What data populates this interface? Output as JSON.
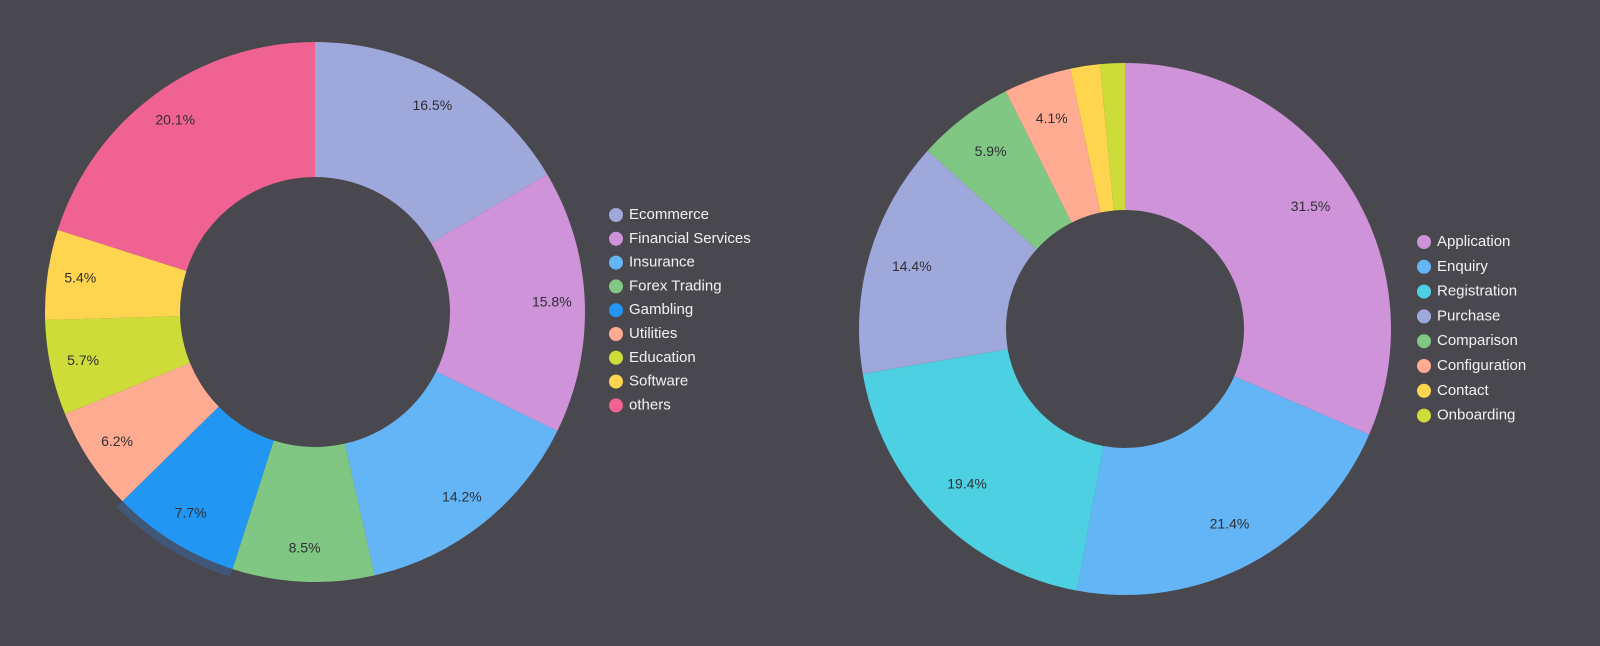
{
  "chart_data": [
    {
      "type": "pie",
      "donut": true,
      "title": "",
      "legend_position": "right",
      "slices": [
        {
          "name": "Ecommerce",
          "value": 16.5,
          "label": "16.5%",
          "color": "#9fa8da"
        },
        {
          "name": "Financial Services",
          "value": 15.8,
          "label": "15.8%",
          "color": "#ce93d8"
        },
        {
          "name": "Insurance",
          "value": 14.2,
          "label": "14.2%",
          "color": "#64b5f6"
        },
        {
          "name": "Forex Trading",
          "value": 8.5,
          "label": "8.5%",
          "color": "#81c784"
        },
        {
          "name": "Gambling",
          "value": 7.7,
          "label": "7.7%",
          "color": "#2196f3"
        },
        {
          "name": "Utilities",
          "value": 6.2,
          "label": "6.2%",
          "color": "#ffab91"
        },
        {
          "name": "Education",
          "value": 5.7,
          "label": "5.7%",
          "color": "#cddc39"
        },
        {
          "name": "Software",
          "value": 5.4,
          "label": "5.4%",
          "color": "#ffd54f"
        },
        {
          "name": "others",
          "value": 20.1,
          "label": "20.1%",
          "color": "#f06292"
        }
      ],
      "highlighted_slice": "Gambling"
    },
    {
      "type": "pie",
      "donut": true,
      "title": "",
      "legend_position": "right",
      "slices": [
        {
          "name": "Application",
          "value": 31.5,
          "label": "31.5%",
          "color": "#ce93d8"
        },
        {
          "name": "Enquiry",
          "value": 21.4,
          "label": "21.4%",
          "color": "#64b5f6"
        },
        {
          "name": "Registration",
          "value": 19.4,
          "label": "19.4%",
          "color": "#4dd0e1"
        },
        {
          "name": "Purchase",
          "value": 14.4,
          "label": "14.4%",
          "color": "#9fa8da"
        },
        {
          "name": "Comparison",
          "value": 5.9,
          "label": "5.9%",
          "color": "#81c784"
        },
        {
          "name": "Configuration",
          "value": 4.1,
          "label": "4.1%",
          "color": "#ffab91"
        },
        {
          "name": "Contact",
          "value": 1.8,
          "label": "",
          "color": "#ffd54f"
        },
        {
          "name": "Onboarding",
          "value": 1.5,
          "label": "",
          "color": "#cddc39"
        }
      ]
    }
  ]
}
